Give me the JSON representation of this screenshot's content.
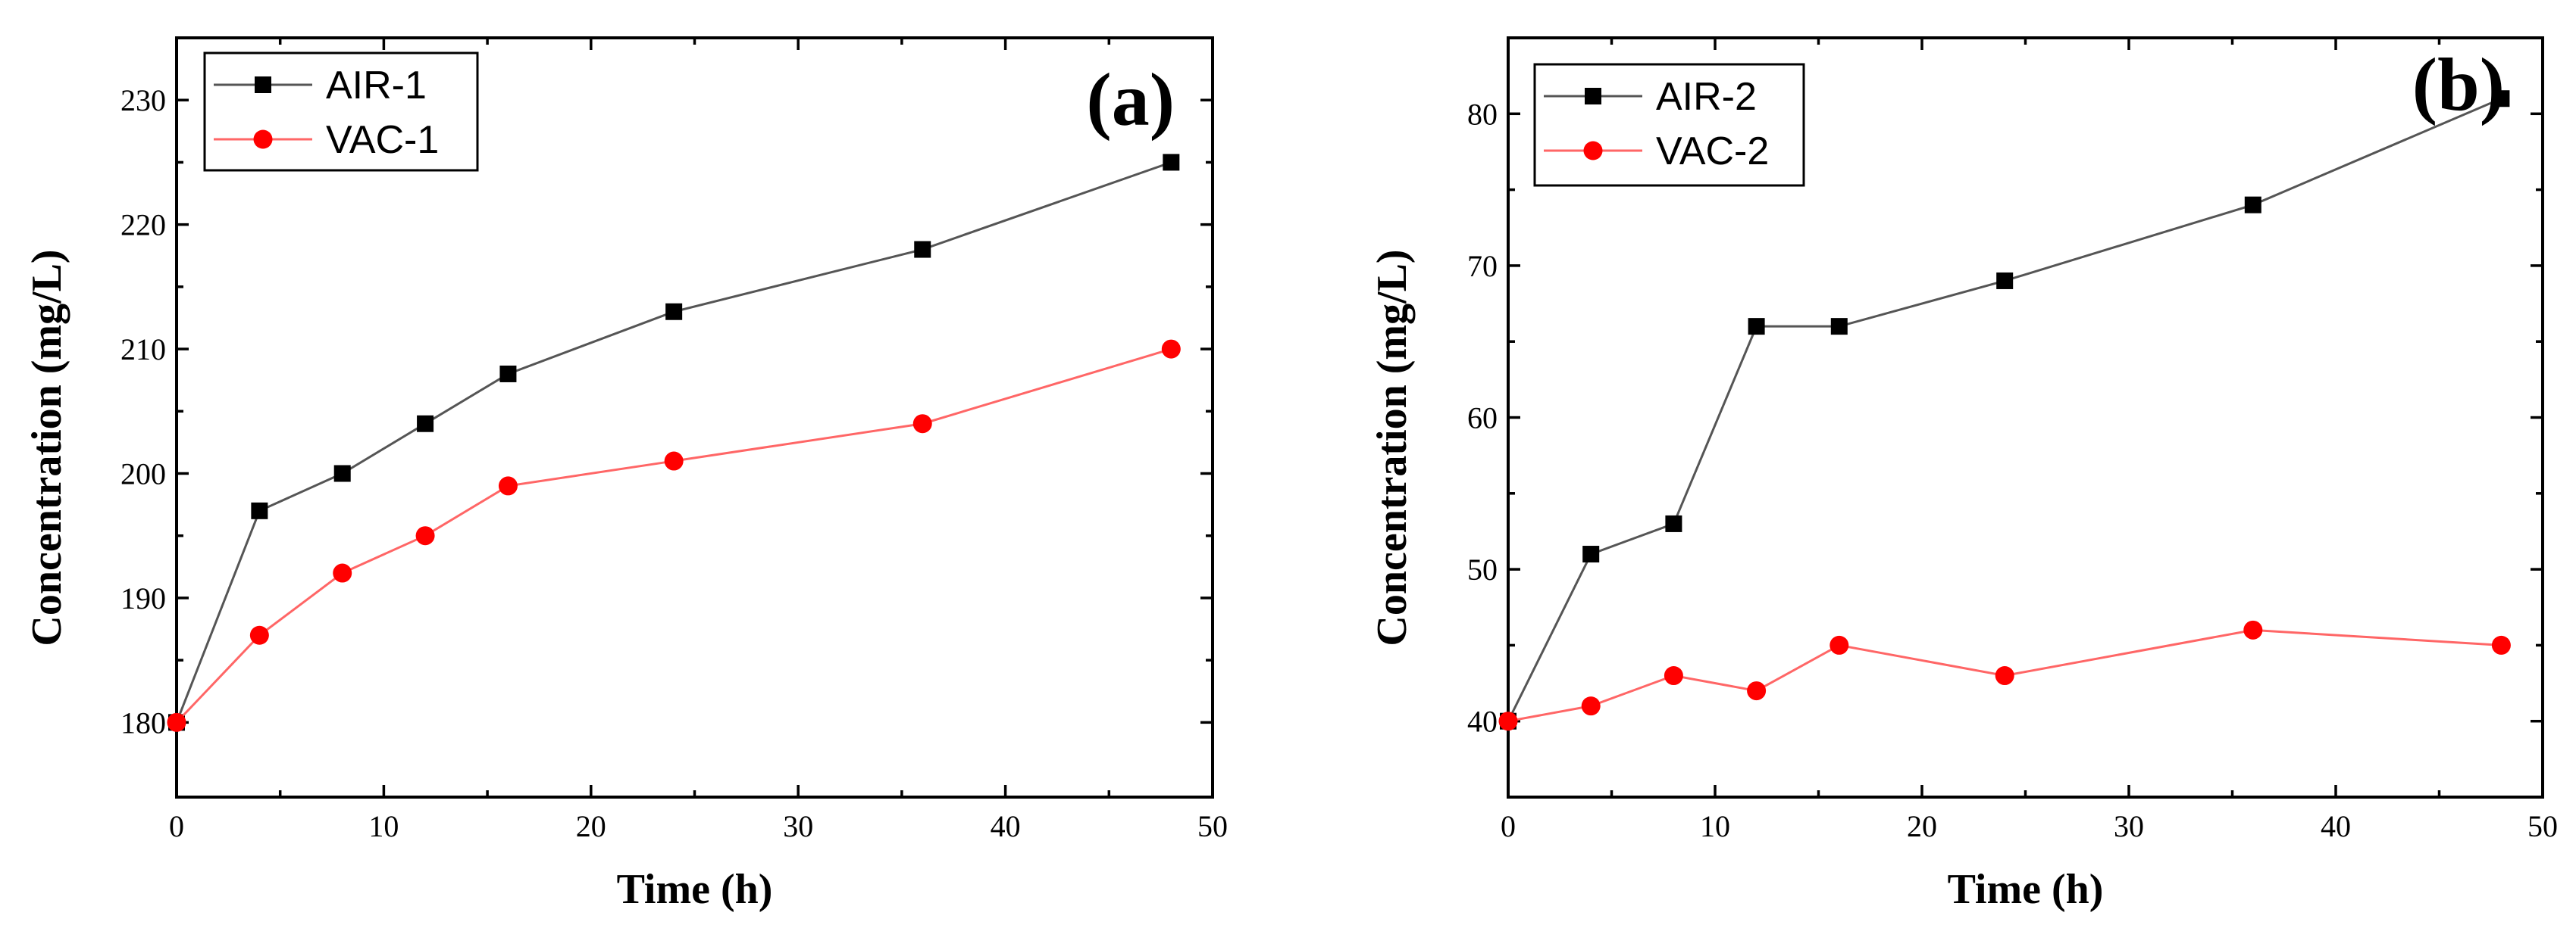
{
  "chart_data": [
    {
      "type": "line",
      "panel_label": "(a)",
      "xlabel": "Time (h)",
      "ylabel": "Concentration (mg/L)",
      "xlim": [
        0,
        50
      ],
      "ylim": [
        174,
        235
      ],
      "xticks": [
        0,
        10,
        20,
        30,
        40,
        50
      ],
      "yticks": [
        180,
        190,
        200,
        210,
        220,
        230
      ],
      "legend_position": "top-left",
      "series": [
        {
          "name": "AIR-1",
          "marker": "square",
          "color": "#000000",
          "line_color": "#555555",
          "x": [
            0,
            4,
            8,
            12,
            16,
            24,
            36,
            48
          ],
          "values": [
            180,
            197,
            200,
            204,
            208,
            213,
            218,
            225
          ]
        },
        {
          "name": "VAC-1",
          "marker": "circle",
          "color": "#ff0000",
          "line_color": "#ff6666",
          "x": [
            0,
            4,
            8,
            12,
            16,
            24,
            36,
            48
          ],
          "values": [
            180,
            187,
            192,
            195,
            199,
            201,
            204,
            210
          ]
        }
      ]
    },
    {
      "type": "line",
      "panel_label": "(b)",
      "xlabel": "Time (h)",
      "ylabel": "Concentration (mg/L)",
      "xlim": [
        0,
        50
      ],
      "ylim": [
        35,
        85
      ],
      "xticks": [
        0,
        10,
        20,
        30,
        40,
        50
      ],
      "yticks": [
        40,
        50,
        60,
        70,
        80
      ],
      "legend_position": "top-left",
      "series": [
        {
          "name": "AIR-2",
          "marker": "square",
          "color": "#000000",
          "line_color": "#555555",
          "x": [
            0,
            4,
            8,
            12,
            16,
            24,
            36,
            48
          ],
          "values": [
            40,
            51,
            53,
            66,
            66,
            69,
            74,
            81
          ]
        },
        {
          "name": "VAC-2",
          "marker": "circle",
          "color": "#ff0000",
          "line_color": "#ff6666",
          "x": [
            0,
            4,
            8,
            12,
            16,
            24,
            36,
            48
          ],
          "values": [
            40,
            41,
            43,
            42,
            45,
            43,
            46,
            45
          ]
        }
      ]
    }
  ]
}
